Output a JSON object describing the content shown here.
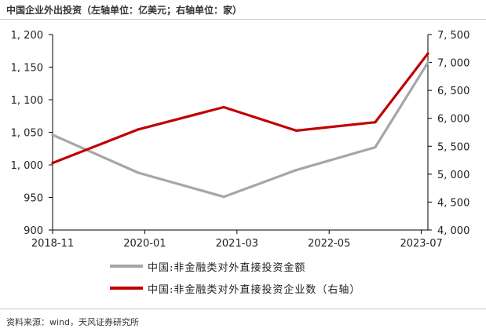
{
  "title": "中国企业外出投资（左轴单位：亿美元；右轴单位：家）",
  "source": "资料来源：wind，天风证券研究所",
  "chart_data": {
    "type": "line",
    "title": "中国企业外出投资（左轴单位：亿美元；右轴单位：家）",
    "x": [
      "2018-11",
      "2019-12",
      "2021-01",
      "2021-12",
      "2022-12",
      "2023-08"
    ],
    "x_ticks": [
      "2018-11",
      "2020-01",
      "2021-03",
      "2022-05",
      "2023-07"
    ],
    "y_left": {
      "range": [
        900,
        1200
      ],
      "ticks": [
        "1, 200",
        "1, 150",
        "1, 100",
        "1, 050",
        "1, 000",
        "950",
        "900"
      ]
    },
    "y_right": {
      "range": [
        4000,
        7500
      ],
      "ticks": [
        "7, 500",
        "7, 000",
        "6, 500",
        "6, 000",
        "5, 500",
        "5, 000",
        "4, 500",
        "4, 000"
      ]
    },
    "series": [
      {
        "name": "中国:非金融类对外直接投资金额",
        "axis": "left",
        "color": "#a6a6a6",
        "values": [
          1046,
          988,
          951,
          992,
          1027,
          1157
        ]
      },
      {
        "name": "中国:非金融类对外直接投资企业数（右轴）",
        "axis": "right",
        "color": "#c00000",
        "values": [
          5200,
          5800,
          6200,
          5780,
          5930,
          7160
        ]
      }
    ],
    "grid": false,
    "legend_position": "bottom"
  }
}
